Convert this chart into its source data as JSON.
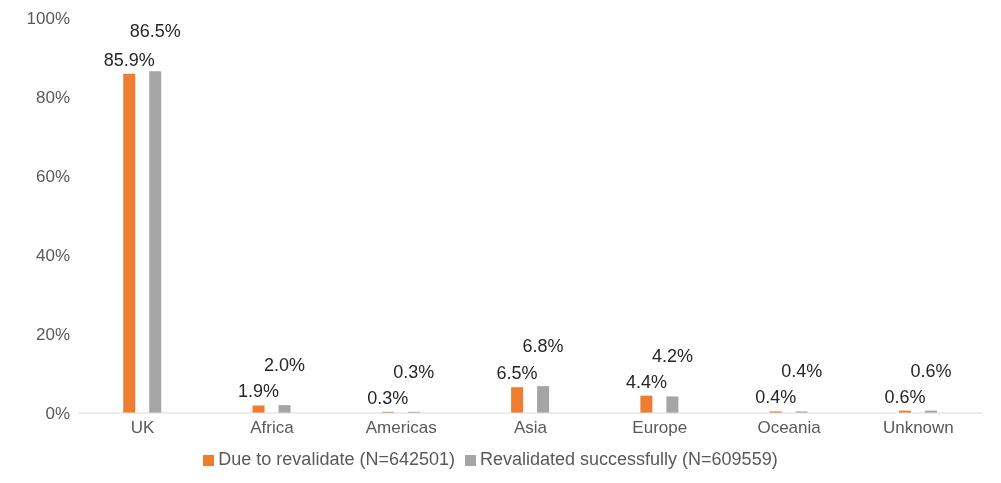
{
  "chart_data": {
    "type": "bar",
    "categories": [
      "UK",
      "Africa",
      "Americas",
      "Asia",
      "Europe",
      "Oceania",
      "Unknown"
    ],
    "series": [
      {
        "name": "Due to revalidate (N=642501)",
        "color": "#ed7d31",
        "values": [
          85.9,
          1.9,
          0.3,
          6.5,
          4.4,
          0.4,
          0.6
        ],
        "value_labels": [
          "85.9%",
          "1.9%",
          "0.3%",
          "6.5%",
          "4.4%",
          "0.4%",
          "0.6%"
        ]
      },
      {
        "name": "Revalidated successfully (N=609559)",
        "color": "#a5a5a5",
        "values": [
          86.5,
          2.0,
          0.3,
          6.8,
          4.2,
          0.4,
          0.6
        ],
        "value_labels": [
          "86.5%",
          "2.0%",
          "0.3%",
          "6.8%",
          "4.2%",
          "0.4%",
          "0.6%"
        ]
      }
    ],
    "ylim": [
      0,
      100
    ],
    "yticks": [
      {
        "value": 0,
        "label": "0%"
      },
      {
        "value": 20,
        "label": "20%"
      },
      {
        "value": 40,
        "label": "40%"
      },
      {
        "value": 60,
        "label": "60%"
      },
      {
        "value": 80,
        "label": "80%"
      },
      {
        "value": 100,
        "label": "100%"
      }
    ],
    "grid": false,
    "legend": "bottom"
  }
}
